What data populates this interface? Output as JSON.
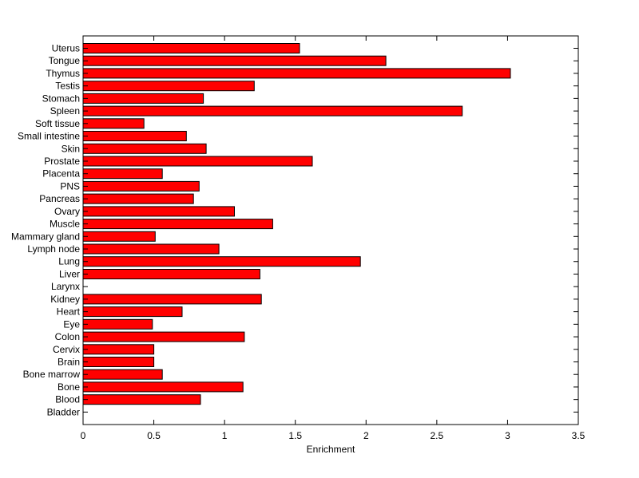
{
  "chart_data": {
    "type": "bar",
    "orientation": "horizontal",
    "title": "",
    "xlabel": "Enrichment",
    "ylabel": "",
    "xlim": [
      0,
      3.5
    ],
    "xticks": [
      "0",
      "0.5",
      "1",
      "1.5",
      "2",
      "2.5",
      "3",
      "3.5"
    ],
    "grid": false,
    "legend": "none",
    "bar_color": "#ff0000",
    "edge_color": "#000000",
    "categories": [
      "Uterus",
      "Tongue",
      "Thymus",
      "Testis",
      "Stomach",
      "Spleen",
      "Soft tissue",
      "Small intestine",
      "Skin",
      "Prostate",
      "Placenta",
      "PNS",
      "Pancreas",
      "Ovary",
      "Muscle",
      "Mammary gland",
      "Lymph node",
      "Lung",
      "Liver",
      "Larynx",
      "Kidney",
      "Heart",
      "Eye",
      "Colon",
      "Cervix",
      "Brain",
      "Bone marrow",
      "Bone",
      "Blood",
      "Bladder"
    ],
    "values": [
      1.53,
      2.14,
      3.02,
      1.21,
      0.85,
      2.68,
      0.43,
      0.73,
      0.87,
      1.62,
      0.56,
      0.82,
      0.78,
      1.07,
      1.34,
      0.51,
      0.96,
      1.96,
      1.25,
      0.0,
      1.26,
      0.7,
      0.49,
      1.14,
      0.5,
      0.5,
      0.56,
      1.13,
      0.83,
      0.0
    ]
  }
}
